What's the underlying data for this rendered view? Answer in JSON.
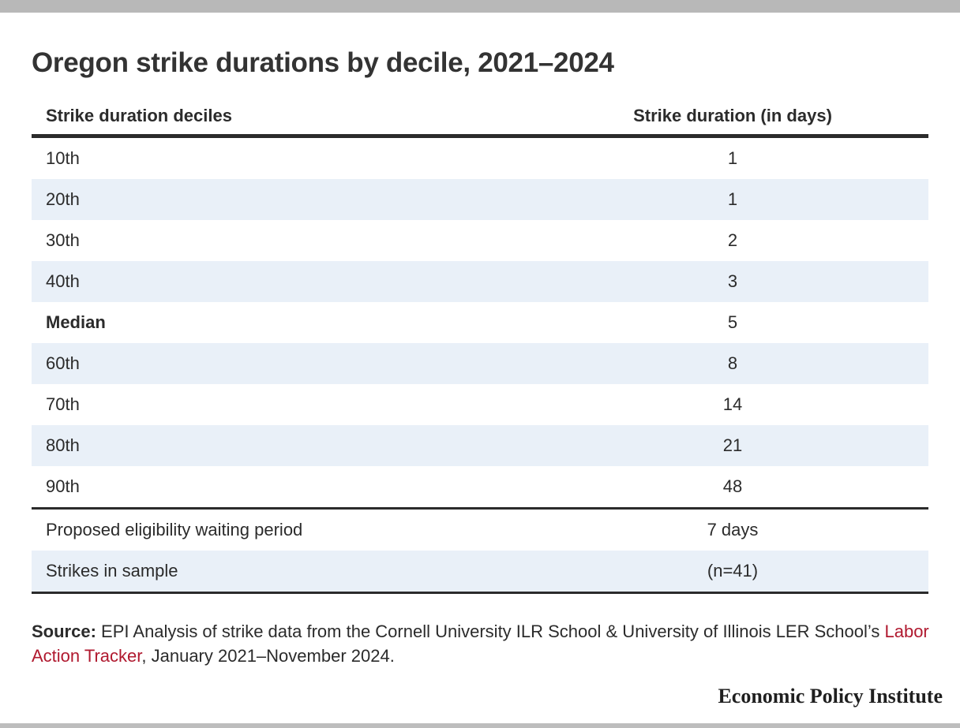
{
  "title": "Oregon strike durations by decile, 2021–2024",
  "chart_data": {
    "type": "table",
    "columns": [
      "Strike duration deciles",
      "Strike duration (in days)"
    ],
    "rows": [
      {
        "label": "10th",
        "value": "1"
      },
      {
        "label": "20th",
        "value": "1"
      },
      {
        "label": "30th",
        "value": "2"
      },
      {
        "label": "40th",
        "value": "3"
      },
      {
        "label": "Median",
        "value": "5"
      },
      {
        "label": "60th",
        "value": "8"
      },
      {
        "label": "70th",
        "value": "14"
      },
      {
        "label": "80th",
        "value": "21"
      },
      {
        "label": "90th",
        "value": "48"
      }
    ],
    "summary_rows": [
      {
        "label": "Proposed eligibility waiting period",
        "value": "7 days"
      },
      {
        "label": "Strikes in sample",
        "value": "(n=41)"
      }
    ]
  },
  "source": {
    "label": "Source:",
    "text_before": " EPI Analysis of strike data from the Cornell University ILR School & University of Illinois LER School’s ",
    "link_text": "Labor Action Tracker",
    "text_after": ", January 2021–November 2024."
  },
  "publisher": "Economic Policy Institute",
  "colors": {
    "row_shade": "#e9f0f8",
    "link": "#b0192f",
    "rule": "#2b2b2b"
  }
}
